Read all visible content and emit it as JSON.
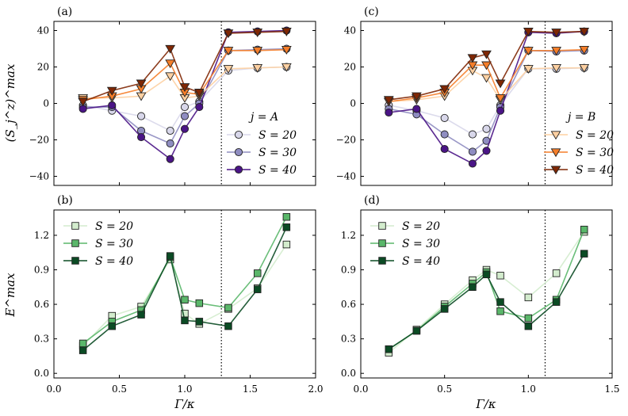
{
  "colors": {
    "purple": [
      "#d8d7ea",
      "#8f8dc1",
      "#4a1486"
    ],
    "orange": [
      "#fdd0a2",
      "#f57e2a",
      "#7f2704"
    ],
    "green": [
      "#d3eccd",
      "#5ab76a",
      "#0b4b24"
    ],
    "dotted": "#000000"
  },
  "chart_data": [
    {
      "id": "a",
      "panel_label": "(a)",
      "type": "line",
      "ylabel": "(S_j^z)^max",
      "ylim": [
        -45,
        45
      ],
      "yticks": [
        -40,
        -20,
        0,
        20,
        40
      ],
      "ytick_labels": [
        "−40",
        "−20",
        "0",
        "20",
        "40"
      ],
      "xlim": [
        0,
        2
      ],
      "xticks": [
        0,
        0.5,
        1,
        1.5,
        2
      ],
      "xtick_labels": [],
      "vline": 1.28,
      "legend_title": "j = A",
      "legend_entries": [
        "S = 20",
        "S = 30",
        "S = 40"
      ],
      "series": [
        {
          "name": "S = 20 (j = A)",
          "marker": "circle",
          "color_key": "purple",
          "shade": 0,
          "legend": true,
          "x": [
            0.222,
            0.444,
            0.667,
            0.889,
            1.0,
            1.111,
            1.333,
            1.556,
            1.778
          ],
          "y": [
            -1,
            -4,
            -7,
            -15,
            -2,
            1,
            18,
            19.5,
            20
          ]
        },
        {
          "name": "S = 30 (j = A)",
          "marker": "circle",
          "color_key": "purple",
          "shade": 1,
          "legend": true,
          "x": [
            0.222,
            0.444,
            0.667,
            0.889,
            1.0,
            1.111,
            1.333,
            1.556,
            1.778
          ],
          "y": [
            -2,
            -2,
            -15,
            -22,
            -7,
            0,
            29,
            29.5,
            30
          ]
        },
        {
          "name": "S = 40 (j = A)",
          "marker": "circle",
          "color_key": "purple",
          "shade": 2,
          "legend": true,
          "x": [
            0.222,
            0.444,
            0.667,
            0.889,
            1.0,
            1.111,
            1.333,
            1.556,
            1.778
          ],
          "y": [
            -3,
            -1,
            -18.5,
            -30.5,
            -14,
            -2,
            39,
            39.5,
            40
          ]
        },
        {
          "name": "S = 20 (j = B)",
          "marker": "triangle",
          "color_key": "orange",
          "shade": 0,
          "legend": false,
          "x": [
            0.222,
            0.444,
            0.667,
            0.889,
            1.0,
            1.111,
            1.333,
            1.556,
            1.778
          ],
          "y": [
            3,
            3,
            4,
            15,
            3,
            4,
            19,
            19.5,
            20
          ]
        },
        {
          "name": "S = 30 (j = B)",
          "marker": "triangle",
          "color_key": "orange",
          "shade": 1,
          "legend": false,
          "x": [
            0.222,
            0.444,
            0.667,
            0.889,
            1.0,
            1.111,
            1.333,
            1.556,
            1.778
          ],
          "y": [
            2,
            4,
            8,
            22,
            6,
            5,
            29,
            29,
            29.5
          ]
        },
        {
          "name": "S = 40 (j = B)",
          "marker": "triangle",
          "color_key": "orange",
          "shade": 2,
          "legend": false,
          "x": [
            0.222,
            0.444,
            0.667,
            0.889,
            1.0,
            1.111,
            1.333,
            1.556,
            1.778
          ],
          "y": [
            1,
            7,
            11,
            30,
            9,
            6,
            38.5,
            39,
            39.5
          ]
        }
      ]
    },
    {
      "id": "c",
      "panel_label": "(c)",
      "type": "line",
      "ylabel": "",
      "ylim": [
        -45,
        45
      ],
      "yticks": [
        -40,
        -20,
        0,
        20,
        40
      ],
      "ytick_labels": [
        "−40",
        "−20",
        "0",
        "20",
        "40"
      ],
      "xlim": [
        0,
        1.5
      ],
      "xticks": [
        0,
        0.5,
        1,
        1.5
      ],
      "xtick_labels": [],
      "vline": 1.1,
      "legend_title": "j = B",
      "legend_entries": [
        "S = 20",
        "S = 30",
        "S = 40"
      ],
      "series": [
        {
          "name": "S = 20 (j = A)",
          "marker": "circle",
          "color_key": "purple",
          "shade": 0,
          "legend": false,
          "x": [
            0.167,
            0.333,
            0.5,
            0.667,
            0.75,
            0.833,
            1.0,
            1.167,
            1.333
          ],
          "y": [
            -1,
            -4,
            -8,
            -17,
            -14,
            -1,
            19,
            19,
            19.5
          ]
        },
        {
          "name": "S = 30 (j = A)",
          "marker": "circle",
          "color_key": "purple",
          "shade": 1,
          "legend": false,
          "x": [
            0.167,
            0.333,
            0.5,
            0.667,
            0.75,
            0.833,
            1.0,
            1.167,
            1.333
          ],
          "y": [
            -3,
            -6,
            -17,
            -26.5,
            -20.5,
            -2,
            29,
            28.5,
            29
          ]
        },
        {
          "name": "S = 40 (j = A)",
          "marker": "circle",
          "color_key": "purple",
          "shade": 2,
          "legend": false,
          "x": [
            0.167,
            0.333,
            0.5,
            0.667,
            0.75,
            0.833,
            1.0,
            1.167,
            1.333
          ],
          "y": [
            -5,
            -3,
            -25,
            -33,
            -26,
            -4,
            39,
            38.5,
            39.5
          ]
        },
        {
          "name": "S = 20 (j = B)",
          "marker": "triangle",
          "color_key": "orange",
          "shade": 0,
          "legend": true,
          "x": [
            0.167,
            0.333,
            0.5,
            0.667,
            0.75,
            0.833,
            1.0,
            1.167,
            1.333
          ],
          "y": [
            1,
            2,
            4,
            18,
            14,
            2,
            19,
            19.5,
            19.5
          ]
        },
        {
          "name": "S = 30 (j = B)",
          "marker": "triangle",
          "color_key": "orange",
          "shade": 1,
          "legend": true,
          "x": [
            0.167,
            0.333,
            0.5,
            0.667,
            0.75,
            0.833,
            1.0,
            1.167,
            1.333
          ],
          "y": [
            1,
            3,
            6,
            21,
            21,
            3,
            29,
            29,
            29.5
          ]
        },
        {
          "name": "S = 40 (j = B)",
          "marker": "triangle",
          "color_key": "orange",
          "shade": 2,
          "legend": true,
          "x": [
            0.167,
            0.333,
            0.5,
            0.667,
            0.75,
            0.833,
            1.0,
            1.167,
            1.333
          ],
          "y": [
            2,
            4,
            8,
            25,
            27,
            11,
            39.5,
            39,
            39.5
          ]
        }
      ]
    },
    {
      "id": "b",
      "panel_label": "(b)",
      "type": "line",
      "ylabel": "E^max",
      "ylim": [
        -0.04,
        1.42
      ],
      "yticks": [
        0,
        0.3,
        0.6,
        0.9,
        1.2
      ],
      "ytick_labels": [
        "0.0",
        "0.3",
        "0.6",
        "0.9",
        "1.2"
      ],
      "xlim": [
        0,
        2
      ],
      "xticks": [
        0,
        0.5,
        1,
        1.5,
        2
      ],
      "xtick_labels": [
        "0.0",
        "0.5",
        "1.0",
        "1.5",
        "2.0"
      ],
      "xlabel": "Γ/κ",
      "vline": 1.28,
      "legend_title": "",
      "legend_entries": [
        "S = 20",
        "S = 30",
        "S = 40"
      ],
      "series": [
        {
          "name": "S = 20",
          "marker": "square",
          "color_key": "green",
          "shade": 0,
          "legend": true,
          "x": [
            0.222,
            0.444,
            0.667,
            0.889,
            1.0,
            1.111,
            1.333,
            1.556,
            1.778
          ],
          "y": [
            0.24,
            0.5,
            0.58,
            0.99,
            0.52,
            0.43,
            0.56,
            0.74,
            1.12
          ]
        },
        {
          "name": "S = 30",
          "marker": "square",
          "color_key": "green",
          "shade": 1,
          "legend": true,
          "x": [
            0.222,
            0.444,
            0.667,
            0.889,
            1.0,
            1.111,
            1.333,
            1.556,
            1.778
          ],
          "y": [
            0.26,
            0.45,
            0.55,
            1.01,
            0.64,
            0.61,
            0.57,
            0.87,
            1.36
          ]
        },
        {
          "name": "S = 40",
          "marker": "square",
          "color_key": "green",
          "shade": 2,
          "legend": true,
          "x": [
            0.222,
            0.444,
            0.667,
            0.889,
            1.0,
            1.111,
            1.333,
            1.556,
            1.778
          ],
          "y": [
            0.2,
            0.41,
            0.51,
            1.02,
            0.46,
            0.45,
            0.41,
            0.73,
            1.27
          ]
        }
      ]
    },
    {
      "id": "d",
      "panel_label": "(d)",
      "type": "line",
      "ylabel": "",
      "ylim": [
        -0.04,
        1.42
      ],
      "yticks": [
        0,
        0.3,
        0.6,
        0.9,
        1.2
      ],
      "ytick_labels": [
        "0.0",
        "0.3",
        "0.6",
        "0.9",
        "1.2"
      ],
      "xlim": [
        0,
        1.5
      ],
      "xticks": [
        0,
        0.5,
        1,
        1.5
      ],
      "xtick_labels": [
        "0.0",
        "0.5",
        "1.0",
        "1.5"
      ],
      "xlabel": "Γ/κ",
      "vline": 1.1,
      "legend_title": "",
      "legend_entries": [
        "S = 20",
        "S = 30",
        "S = 40"
      ],
      "series": [
        {
          "name": "S = 20",
          "marker": "square",
          "color_key": "green",
          "shade": 0,
          "legend": true,
          "x": [
            0.167,
            0.333,
            0.5,
            0.667,
            0.75,
            0.833,
            1.0,
            1.167,
            1.333
          ],
          "y": [
            0.18,
            0.38,
            0.6,
            0.81,
            0.9,
            0.85,
            0.66,
            0.87,
            1.23
          ]
        },
        {
          "name": "S = 30",
          "marker": "square",
          "color_key": "green",
          "shade": 1,
          "legend": true,
          "x": [
            0.167,
            0.333,
            0.5,
            0.667,
            0.75,
            0.833,
            1.0,
            1.167,
            1.333
          ],
          "y": [
            0.21,
            0.37,
            0.58,
            0.78,
            0.88,
            0.54,
            0.48,
            0.64,
            1.25
          ]
        },
        {
          "name": "S = 40",
          "marker": "square",
          "color_key": "green",
          "shade": 2,
          "legend": true,
          "x": [
            0.167,
            0.333,
            0.5,
            0.667,
            0.75,
            0.833,
            1.0,
            1.167,
            1.333
          ],
          "y": [
            0.21,
            0.37,
            0.56,
            0.75,
            0.86,
            0.62,
            0.41,
            0.62,
            1.04
          ]
        }
      ]
    }
  ]
}
